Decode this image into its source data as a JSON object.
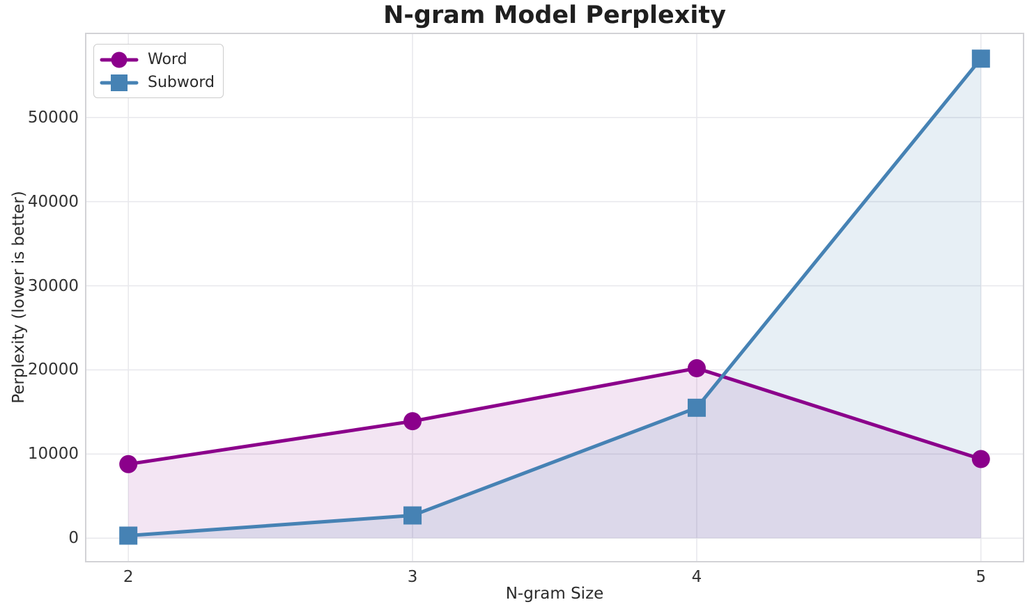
{
  "chart_data": {
    "type": "line",
    "title": "N-gram Model Perplexity",
    "xlabel": "N-gram Size",
    "ylabel": "Perplexity (lower is better)",
    "x": [
      2,
      3,
      4,
      5
    ],
    "x_tick_labels": [
      "2",
      "3",
      "4",
      "5"
    ],
    "y_ticks": [
      0,
      10000,
      20000,
      30000,
      40000,
      50000
    ],
    "y_tick_labels": [
      "0",
      "10000",
      "20000",
      "30000",
      "40000",
      "50000"
    ],
    "xlim": [
      1.85,
      5.15
    ],
    "ylim": [
      -2800,
      60000
    ],
    "grid": true,
    "legend_position": "upper left",
    "series": [
      {
        "name": "Word",
        "marker": "circle",
        "color": "#8B008B",
        "fill_alpha": 0.1,
        "values": [
          8800,
          13900,
          20200,
          9400
        ]
      },
      {
        "name": "Subword",
        "marker": "square",
        "color": "#4682B4",
        "fill_alpha": 0.13,
        "values": [
          300,
          2700,
          15500,
          57000
        ]
      }
    ],
    "fill_to_baseline": 0,
    "colors": {
      "title_text": "#1f1f1f",
      "axis_text": "#2b2b2b",
      "tick_text": "#333333",
      "grid": "#e9e9ed",
      "spine": "#d2d2d6",
      "background": "#ffffff"
    }
  }
}
